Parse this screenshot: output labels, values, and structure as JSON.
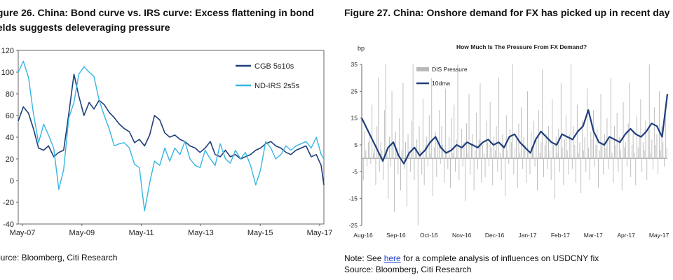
{
  "left": {
    "title": "igure 26. China: Bond curve vs. IRS curve: Excess flattening in bond ields suggests deleveraging pressure",
    "source": "ource: Bloomberg, Citi Research"
  },
  "right": {
    "title": "Figure 27. China: Onshore demand for FX has picked up in recent day",
    "note_prefix": "Note: See ",
    "note_link": "here",
    "note_suffix": " for a complete analysis of influences on USDCNY fix",
    "source": "Source: Bloomberg, Citi Research"
  },
  "colors": {
    "cgb": "#1f3e7a",
    "ndirs": "#35b6e2",
    "dis": "#b9b9b9",
    "dma": "#1f3e7a"
  },
  "chart_data": [
    {
      "type": "line",
      "title": "",
      "xlabel": "",
      "ylabel": "",
      "x_ticks": [
        "May-07",
        "May-09",
        "May-11",
        "May-13",
        "May-15",
        "May-17"
      ],
      "y_ticks": [
        "120",
        "100",
        "80",
        "60",
        "40",
        "20",
        "0",
        "-20",
        "-40"
      ],
      "ylim": [
        -40,
        120
      ],
      "xlim": [
        2007.33,
        2017.42
      ],
      "legend": "top-right",
      "grid": false,
      "series": [
        {
          "name": "CGB 5s10s",
          "x": [
            2007.33,
            2007.5,
            2007.67,
            2007.83,
            2008.0,
            2008.17,
            2008.33,
            2008.5,
            2008.67,
            2008.83,
            2009.0,
            2009.17,
            2009.33,
            2009.5,
            2009.67,
            2009.83,
            2010.0,
            2010.17,
            2010.33,
            2010.5,
            2010.67,
            2010.83,
            2011.0,
            2011.17,
            2011.33,
            2011.5,
            2011.67,
            2011.83,
            2012.0,
            2012.17,
            2012.33,
            2012.5,
            2012.67,
            2012.83,
            2013.0,
            2013.17,
            2013.33,
            2013.5,
            2013.67,
            2013.83,
            2014.0,
            2014.17,
            2014.33,
            2014.5,
            2014.67,
            2014.83,
            2015.0,
            2015.17,
            2015.33,
            2015.5,
            2015.67,
            2015.83,
            2016.0,
            2016.17,
            2016.33,
            2016.5,
            2016.67,
            2016.83,
            2017.0,
            2017.17,
            2017.33,
            2017.42
          ],
          "values": [
            55,
            68,
            62,
            48,
            30,
            28,
            32,
            22,
            26,
            28,
            62,
            98,
            78,
            60,
            72,
            66,
            74,
            70,
            63,
            58,
            52,
            48,
            45,
            35,
            38,
            32,
            42,
            60,
            56,
            44,
            40,
            42,
            38,
            36,
            32,
            30,
            26,
            30,
            36,
            24,
            22,
            28,
            22,
            24,
            20,
            22,
            24,
            28,
            30,
            34,
            36,
            32,
            30,
            26,
            24,
            28,
            30,
            32,
            22,
            24,
            14,
            -4
          ]
        },
        {
          "name": "ND-IRS 2s5s",
          "x": [
            2007.33,
            2007.5,
            2007.67,
            2007.83,
            2008.0,
            2008.17,
            2008.33,
            2008.5,
            2008.67,
            2008.83,
            2009.0,
            2009.17,
            2009.33,
            2009.5,
            2009.67,
            2009.83,
            2010.0,
            2010.17,
            2010.33,
            2010.5,
            2010.67,
            2010.83,
            2011.0,
            2011.17,
            2011.33,
            2011.5,
            2011.67,
            2011.83,
            2012.0,
            2012.17,
            2012.33,
            2012.5,
            2012.67,
            2012.83,
            2013.0,
            2013.17,
            2013.33,
            2013.5,
            2013.67,
            2013.83,
            2014.0,
            2014.17,
            2014.33,
            2014.5,
            2014.67,
            2014.83,
            2015.0,
            2015.17,
            2015.33,
            2015.5,
            2015.67,
            2015.83,
            2016.0,
            2016.17,
            2016.33,
            2016.5,
            2016.67,
            2016.83,
            2017.0,
            2017.17,
            2017.33,
            2017.42
          ],
          "values": [
            100,
            110,
            95,
            62,
            35,
            52,
            42,
            30,
            -8,
            10,
            58,
            72,
            98,
            105,
            100,
            96,
            74,
            60,
            48,
            32,
            34,
            35,
            30,
            15,
            12,
            -28,
            -2,
            18,
            14,
            30,
            18,
            30,
            24,
            36,
            20,
            14,
            12,
            28,
            20,
            14,
            34,
            20,
            16,
            28,
            20,
            26,
            14,
            -4,
            10,
            36,
            30,
            20,
            24,
            32,
            28,
            32,
            34,
            36,
            30,
            40,
            24,
            20
          ]
        }
      ]
    },
    {
      "type": "bar",
      "title": "How Much Is The Pressure From FX Demand?",
      "ylabel": "bp",
      "xlabel": "",
      "x_ticks": [
        "Aug-16",
        "Sep-16",
        "Oct-16",
        "Nov-16",
        "Dec-16",
        "Jan-17",
        "Feb-17",
        "Mar-17",
        "Apr-17",
        "May-17"
      ],
      "y_ticks": [
        "35",
        "25",
        "15",
        "5",
        "-5",
        "-15",
        "-25"
      ],
      "ylim": [
        -25,
        35
      ],
      "xlim": [
        0,
        290
      ],
      "legend": "top-left",
      "grid": false,
      "series": [
        {
          "name": "DIS Pressure",
          "type": "bar",
          "values": [
            4,
            -8,
            10,
            3,
            -3,
            6,
            8,
            -2,
            20,
            2,
            4,
            -10,
            12,
            30,
            -5,
            6,
            3,
            -8,
            18,
            35,
            2,
            -15,
            8,
            -3,
            25,
            5,
            -20,
            10,
            4,
            -6,
            15,
            -12,
            3,
            28,
            -4,
            6,
            -18,
            9,
            2,
            -5,
            14,
            35,
            -8,
            4,
            7,
            -25,
            12,
            3,
            -6,
            22,
            -10,
            5,
            8,
            -3,
            16,
            2,
            30,
            -14,
            4,
            10,
            -7,
            6,
            18,
            -2,
            12,
            5,
            -9,
            26,
            3,
            -4,
            8,
            -11,
            15,
            2,
            20,
            -5,
            7,
            35,
            -8,
            4,
            11,
            -3,
            6,
            -16,
            13,
            2,
            24,
            -6,
            5,
            9,
            -12,
            3,
            17,
            -4,
            7,
            28,
            -9,
            5,
            2,
            -7,
            14,
            6,
            -3,
            21,
            4,
            -10,
            8,
            3,
            12,
            -5,
            30,
            2,
            -8,
            9,
            5,
            -14,
            16,
            3,
            -2,
            11,
            6,
            35,
            -6,
            4,
            7,
            -11,
            13,
            2,
            19,
            -4,
            8,
            5,
            -9,
            25,
            3,
            -6,
            10,
            4,
            14,
            -3,
            7,
            -12,
            18,
            2,
            6,
            33,
            -7,
            5,
            9,
            -4,
            12,
            3,
            -8,
            22,
            5,
            -15,
            8,
            2,
            11,
            -5,
            28,
            4,
            -10,
            7,
            16,
            3,
            -6,
            9,
            35,
            -4,
            12,
            5,
            -9,
            20,
            2,
            6,
            -13,
            14,
            3,
            8,
            -5,
            26,
            4,
            -8,
            10,
            7,
            18,
            -3,
            5,
            11,
            -11,
            3,
            24,
            6,
            -6,
            9,
            4,
            15,
            -4,
            7,
            30,
            2,
            -9,
            12,
            5,
            17,
            -5,
            8,
            3,
            -12,
            21,
            4,
            6,
            -3,
            13,
            28,
            -7,
            5,
            10,
            2,
            -10,
            16,
            4,
            8,
            22,
            -5,
            6,
            3,
            14,
            -8,
            11,
            35,
            2,
            7,
            -4,
            19,
            5,
            9,
            -6,
            25,
            3,
            12,
            6,
            -3,
            17,
            4,
            30,
            8,
            -9,
            13,
            5,
            22,
            7,
            35,
            10,
            4,
            18,
            35,
            12,
            6,
            26,
            9,
            35,
            20,
            8,
            35
          ],
          "x_start": 0,
          "x_step": 1.18
        },
        {
          "name": "10dma",
          "type": "line",
          "x": [
            0,
            5,
            10,
            15,
            20,
            25,
            30,
            35,
            40,
            45,
            50,
            55,
            60,
            65,
            70,
            75,
            80,
            85,
            90,
            95,
            100,
            105,
            110,
            115,
            120,
            125,
            130,
            135,
            140,
            145,
            150,
            155,
            160,
            165,
            170,
            175,
            180,
            185,
            190,
            195,
            200,
            205,
            210,
            215,
            220,
            225,
            230,
            235,
            240,
            245,
            250,
            255,
            260,
            265,
            270,
            275,
            280,
            285,
            290
          ],
          "values": [
            15,
            11,
            7,
            3,
            -1,
            4,
            6,
            1,
            -2,
            2,
            4,
            1,
            3,
            6,
            8,
            4,
            2,
            3,
            5,
            4,
            6,
            5,
            4,
            6,
            7,
            5,
            6,
            4,
            8,
            9,
            6,
            4,
            2,
            7,
            10,
            8,
            6,
            5,
            9,
            8,
            7,
            10,
            12,
            18,
            10,
            6,
            5,
            8,
            7,
            6,
            9,
            11,
            9,
            8,
            10,
            13,
            12,
            8,
            24
          ]
        }
      ]
    }
  ]
}
